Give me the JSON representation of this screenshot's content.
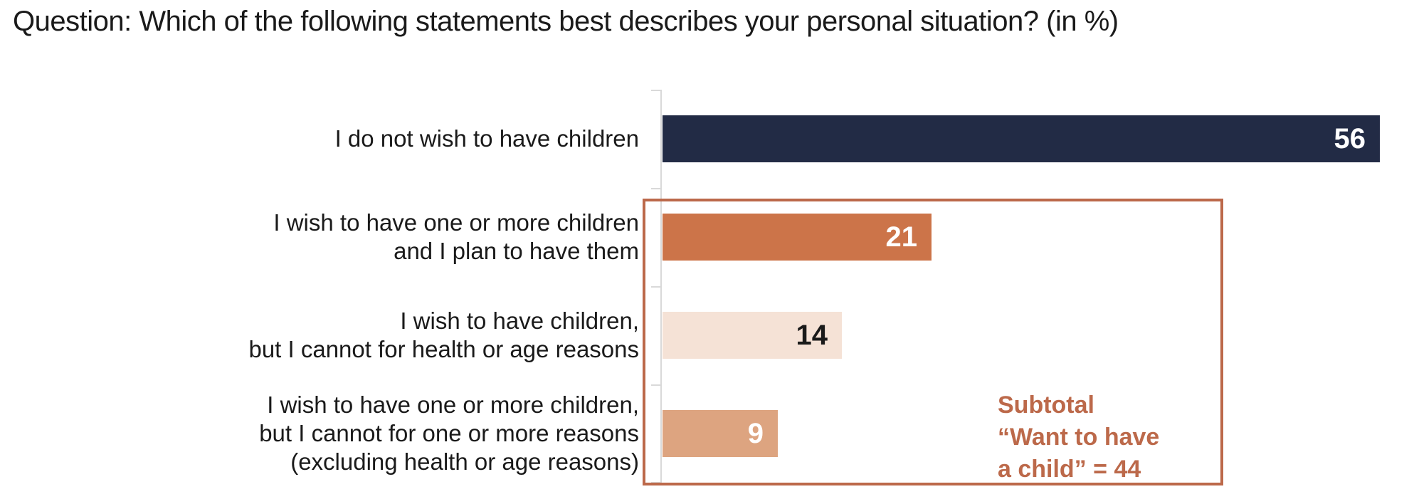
{
  "chart_data": {
    "type": "bar",
    "orientation": "horizontal",
    "title": "Question: Which of the following statements best describes your personal situation? (in %)",
    "unit": "%",
    "xlim": [
      0,
      58
    ],
    "grid": false,
    "categories": [
      [
        "I do not wish to have children"
      ],
      [
        "I wish to have one or more children",
        "and I plan to have them"
      ],
      [
        "I wish to have children,",
        "but I cannot for health or age reasons"
      ],
      [
        "I wish to have one or more children,",
        "but I cannot for one or more reasons",
        "(excluding health or age reasons)"
      ]
    ],
    "values": [
      56,
      21,
      14,
      9
    ],
    "bar_colors": [
      "#222b45",
      "#cc7449",
      "#f5e2d6",
      "#dda480"
    ],
    "value_label_colors": [
      "#ffffff",
      "#ffffff",
      "#1a1a1a",
      "#ffffff"
    ],
    "axis_color": "#d9d9d9",
    "annotation": {
      "lines": [
        "Subtotal",
        "“Want to have",
        "a child” = 44"
      ],
      "subtotal_value": 44,
      "color": "#bc694a",
      "applies_to_values": [
        21,
        14,
        9
      ]
    }
  }
}
